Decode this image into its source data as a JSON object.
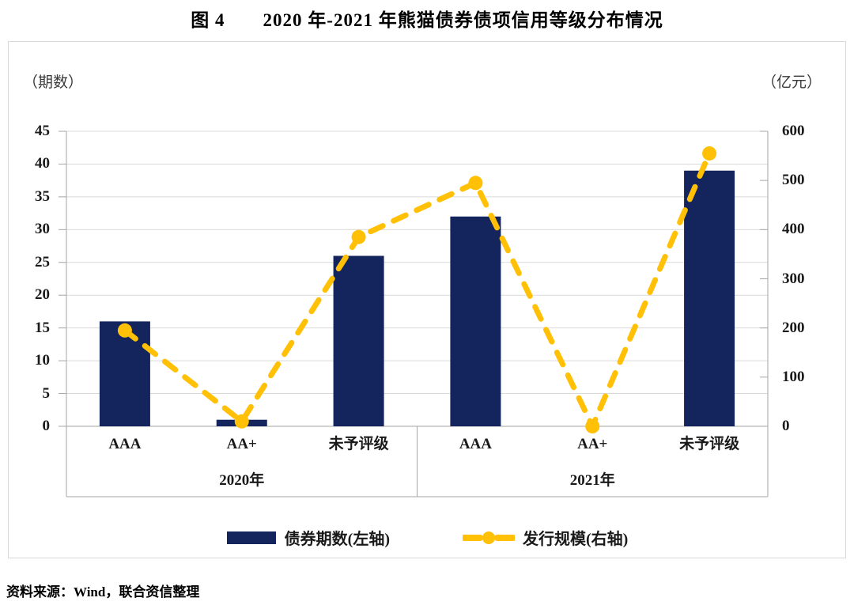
{
  "page": {
    "title": "图 4　　2020 年-2021 年熊猫债券债项信用等级分布情况",
    "source": "资料来源：Wind，联合资信整理"
  },
  "chart_data": {
    "type": "bar",
    "subtype": "combo-bar-line-dual-axis",
    "title": "图 4　　2020 年-2021 年熊猫债券债项信用等级分布情况",
    "left_axis": {
      "label": "（期数）",
      "min": 0,
      "max": 45,
      "tick_step": 5,
      "ticks": [
        0,
        5,
        10,
        15,
        20,
        25,
        30,
        35,
        40,
        45
      ]
    },
    "right_axis": {
      "label": "（亿元）",
      "min": 0,
      "max": 600,
      "tick_step": 100,
      "ticks": [
        0,
        100,
        200,
        300,
        400,
        500,
        600
      ]
    },
    "groups": [
      {
        "label": "2020年",
        "categories": [
          "AAA",
          "AA+",
          "未予评级"
        ]
      },
      {
        "label": "2021年",
        "categories": [
          "AAA",
          "AA+",
          "未予评级"
        ]
      }
    ],
    "categories": [
      "AAA",
      "AA+",
      "未予评级",
      "AAA",
      "AA+",
      "未予评级"
    ],
    "series": [
      {
        "name": "债券期数(左轴)",
        "type": "bar",
        "axis": "left",
        "color": "#14245c",
        "values": [
          16,
          1,
          26,
          32,
          0,
          39
        ]
      },
      {
        "name": "发行规模(右轴)",
        "type": "line",
        "axis": "right",
        "color": "#ffc005",
        "values": [
          195,
          10,
          385,
          495,
          0,
          555
        ]
      }
    ],
    "legend_position": "bottom",
    "grid": true,
    "colors": {
      "bar": "#14245c",
      "line": "#ffc005",
      "gridline": "#d9d9d9",
      "axis": "#a6a6a6",
      "frame": "#d9d9d9"
    }
  }
}
